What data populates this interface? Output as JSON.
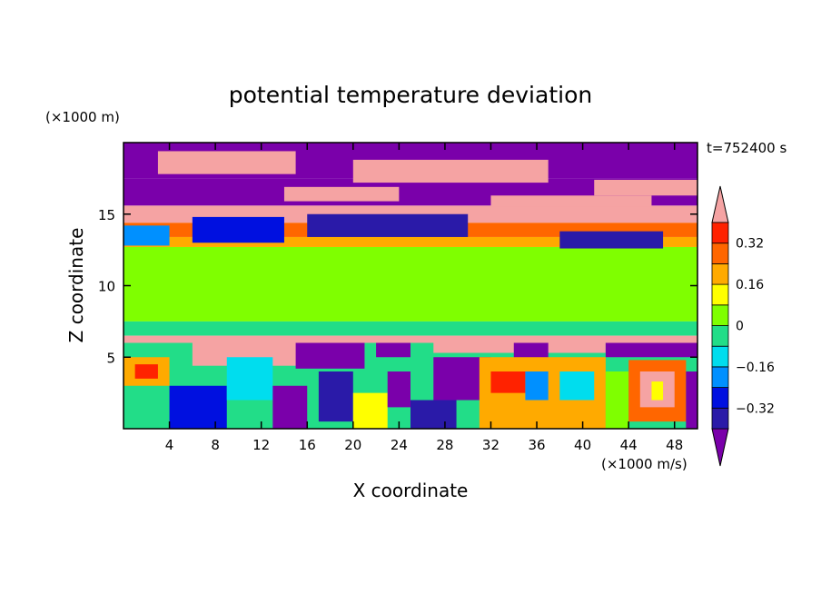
{
  "chart_data": {
    "type": "heatmap",
    "title": "potential temperature deviation",
    "xlabel": "X coordinate",
    "ylabel": "Z coordinate",
    "x_unit": "(×1000 m/s)",
    "y_unit": "(×1000 m)",
    "time_label": "t=752400 s",
    "xlim": [
      0,
      50
    ],
    "ylim": [
      0,
      20
    ],
    "x_ticks": [
      4,
      8,
      12,
      16,
      20,
      24,
      28,
      32,
      36,
      40,
      44,
      48
    ],
    "y_ticks": [
      5,
      10,
      15
    ],
    "colorbar": {
      "levels": [
        -0.48,
        -0.4,
        -0.32,
        -0.24,
        -0.16,
        -0.08,
        0,
        0.08,
        0.16,
        0.24,
        0.32,
        0.4
      ],
      "tick_labels": [
        0.32,
        0.16,
        0,
        -0.16,
        -0.32
      ],
      "colors": [
        "#7a00aa",
        "#2a1aa8",
        "#0010e0",
        "#0090ff",
        "#00ddee",
        "#22dd88",
        "#7fff00",
        "#ffff00",
        "#ffaa00",
        "#ff6600",
        "#ff2200",
        "#f5a3a3"
      ]
    },
    "regions": [
      {
        "x0": 0,
        "x1": 50,
        "y0": 7.5,
        "y1": 12.0,
        "level": 0.04
      },
      {
        "x0": 0,
        "x1": 50,
        "y0": 6.5,
        "y1": 7.5,
        "level": -0.06
      },
      {
        "x0": 0,
        "x1": 50,
        "y0": 12.0,
        "y1": 12.7,
        "level": 0.02
      },
      {
        "x0": 0,
        "x1": 50,
        "y0": 12.7,
        "y1": 13.4,
        "level": 0.2
      },
      {
        "x0": 0,
        "x1": 50,
        "y0": 13.4,
        "y1": 14.4,
        "level": 0.28
      },
      {
        "x0": 0,
        "x1": 50,
        "y0": 14.4,
        "y1": 15.6,
        "level": 0.45
      },
      {
        "x0": 0,
        "x1": 50,
        "y0": 15.6,
        "y1": 17.5,
        "level": -0.45
      },
      {
        "x0": 0,
        "x1": 50,
        "y0": 17.5,
        "y1": 20,
        "level": -0.45
      },
      {
        "x0": 0,
        "x1": 50,
        "y0": 6.0,
        "y1": 6.5,
        "level": 0.45
      },
      {
        "x0": 0,
        "x1": 50,
        "y0": 0,
        "y1": 6.0,
        "level": -0.06
      },
      {
        "x0": 3,
        "x1": 15,
        "y0": 17.8,
        "y1": 19.4,
        "level": 0.45
      },
      {
        "x0": 20,
        "x1": 37,
        "y0": 17.2,
        "y1": 18.8,
        "level": 0.45
      },
      {
        "x0": 41,
        "x1": 50,
        "y0": 16.3,
        "y1": 17.4,
        "level": 0.45
      },
      {
        "x0": 14,
        "x1": 24,
        "y0": 15.9,
        "y1": 16.9,
        "level": 0.45
      },
      {
        "x0": 32,
        "x1": 46,
        "y0": 15.5,
        "y1": 16.3,
        "level": 0.45
      },
      {
        "x0": 0,
        "x1": 50,
        "y0": 14.8,
        "y1": 15.3,
        "level": 0.45
      },
      {
        "x0": 6,
        "x1": 14,
        "y0": 13.0,
        "y1": 14.8,
        "level": -0.3
      },
      {
        "x0": 16,
        "x1": 30,
        "y0": 13.4,
        "y1": 15.0,
        "level": -0.4
      },
      {
        "x0": 38,
        "x1": 47,
        "y0": 12.6,
        "y1": 13.8,
        "level": -0.35
      },
      {
        "x0": 0,
        "x1": 4,
        "y0": 12.8,
        "y1": 14.2,
        "level": -0.2
      },
      {
        "x0": 6,
        "x1": 19,
        "y0": 4.4,
        "y1": 6.0,
        "level": 0.45
      },
      {
        "x0": 15,
        "x1": 21,
        "y0": 4.2,
        "y1": 6.0,
        "level": -0.45
      },
      {
        "x0": 22,
        "x1": 25,
        "y0": 5.0,
        "y1": 6.0,
        "level": -0.45
      },
      {
        "x0": 27,
        "x1": 42,
        "y0": 5.3,
        "y1": 6.0,
        "level": 0.45
      },
      {
        "x0": 34,
        "x1": 37,
        "y0": 4.8,
        "y1": 6.0,
        "level": -0.45
      },
      {
        "x0": 42,
        "x1": 50,
        "y0": 5.0,
        "y1": 6.0,
        "level": -0.45
      },
      {
        "x0": 0,
        "x1": 4,
        "y0": 3.0,
        "y1": 5.0,
        "level": 0.2
      },
      {
        "x0": 1,
        "x1": 3,
        "y0": 3.5,
        "y1": 4.5,
        "level": 0.32
      },
      {
        "x0": 4,
        "x1": 9,
        "y0": 0,
        "y1": 3.0,
        "level": -0.3
      },
      {
        "x0": 9,
        "x1": 13,
        "y0": 2.0,
        "y1": 5.0,
        "level": -0.1
      },
      {
        "x0": 13,
        "x1": 16,
        "y0": 0,
        "y1": 3.0,
        "level": -0.45
      },
      {
        "x0": 17,
        "x1": 20,
        "y0": 0.5,
        "y1": 4.0,
        "level": -0.35
      },
      {
        "x0": 20,
        "x1": 23,
        "y0": 0,
        "y1": 2.5,
        "level": 0.1
      },
      {
        "x0": 23,
        "x1": 25,
        "y0": 1.5,
        "y1": 4.0,
        "level": -0.45
      },
      {
        "x0": 25,
        "x1": 29,
        "y0": 0,
        "y1": 2.0,
        "level": -0.35
      },
      {
        "x0": 27,
        "x1": 32,
        "y0": 2.0,
        "y1": 5.0,
        "level": -0.45
      },
      {
        "x0": 31,
        "x1": 42,
        "y0": 0,
        "y1": 5.0,
        "level": 0.2
      },
      {
        "x0": 32,
        "x1": 35,
        "y0": 2.5,
        "y1": 4.0,
        "level": 0.35
      },
      {
        "x0": 35,
        "x1": 37,
        "y0": 2.0,
        "y1": 4.0,
        "level": -0.2
      },
      {
        "x0": 38,
        "x1": 41,
        "y0": 2.0,
        "y1": 4.0,
        "level": -0.1
      },
      {
        "x0": 42,
        "x1": 44,
        "y0": 0,
        "y1": 4.0,
        "level": 0.05
      },
      {
        "x0": 44,
        "x1": 49,
        "y0": 0.5,
        "y1": 4.8,
        "level": 0.3
      },
      {
        "x0": 45,
        "x1": 48,
        "y0": 1.5,
        "y1": 4.0,
        "level": 0.45
      },
      {
        "x0": 46,
        "x1": 47,
        "y0": 2.0,
        "y1": 3.3,
        "level": 0.1
      },
      {
        "x0": 49,
        "x1": 50,
        "y0": 0,
        "y1": 4.0,
        "level": -0.45
      }
    ]
  }
}
